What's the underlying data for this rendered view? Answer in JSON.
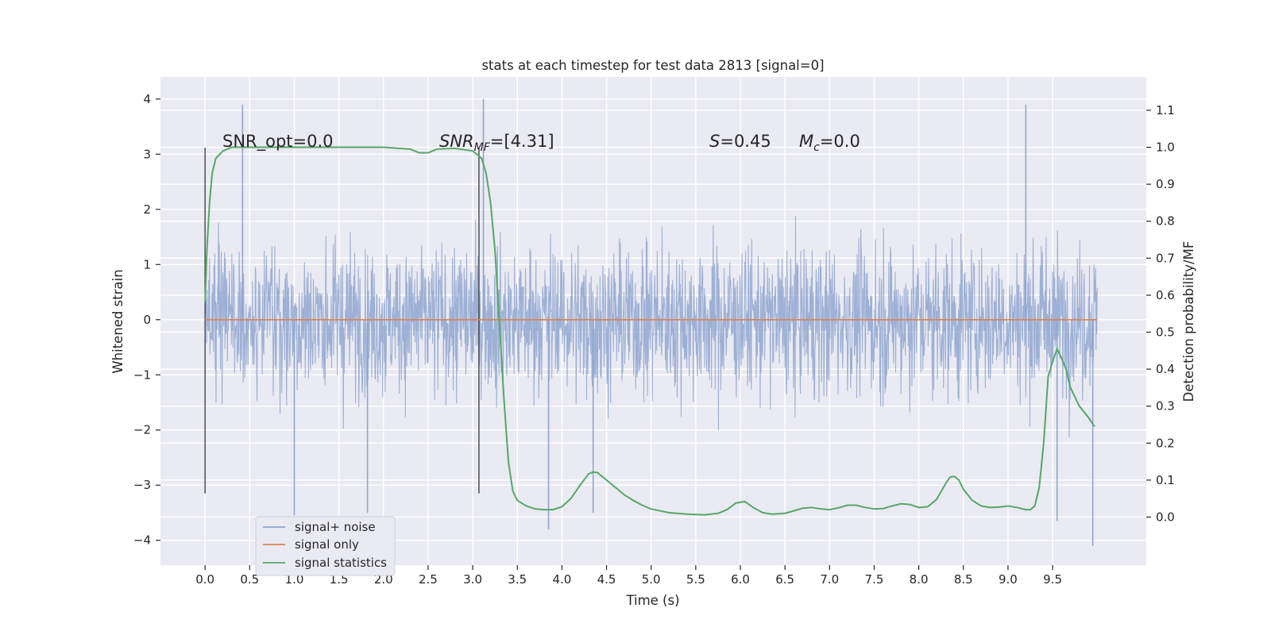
{
  "chart_data": {
    "type": "line",
    "title": "stats at each timestep for test data 2813 [signal=0]",
    "xlabel": "Time (s)",
    "ylabel_left": "Whitened strain",
    "ylabel_right": "Detection probability/MF",
    "xlim": [
      -0.5,
      10.55
    ],
    "ylim_left": [
      -4.45,
      4.4
    ],
    "ylim_right": [
      -0.13,
      1.19
    ],
    "x_ticks": [
      0.0,
      0.5,
      1.0,
      1.5,
      2.0,
      2.5,
      3.0,
      3.5,
      4.0,
      4.5,
      5.0,
      5.5,
      6.0,
      6.5,
      7.0,
      7.5,
      8.0,
      8.5,
      9.0,
      9.5
    ],
    "x_tick_labels": [
      "0.0",
      "0.5",
      "1.0",
      "1.5",
      "2.0",
      "2.5",
      "3.0",
      "3.5",
      "4.0",
      "4.5",
      "5.0",
      "5.5",
      "6.0",
      "6.5",
      "7.0",
      "7.5",
      "8.0",
      "8.5",
      "9.0",
      "9.5"
    ],
    "y_left_ticks": [
      4,
      3,
      2,
      1,
      0,
      -1,
      -2,
      -3,
      -4
    ],
    "y_left_tick_labels": [
      "4",
      "3",
      "2",
      "1",
      "0",
      "−1",
      "−2",
      "−3",
      "−4"
    ],
    "y_right_ticks": [
      1.1,
      1.0,
      0.9,
      0.8,
      0.7,
      0.6,
      0.5,
      0.4,
      0.3,
      0.2,
      0.1,
      0.0
    ],
    "y_right_tick_labels": [
      "1.1",
      "1.0",
      "0.9",
      "0.8",
      "0.7",
      "0.6",
      "0.5",
      "0.4",
      "0.3",
      "0.2",
      "0.1",
      "0.0"
    ],
    "grid": true,
    "legend_position": "lower-left",
    "series": [
      {
        "name": "signal+ noise",
        "axis": "left",
        "color": "#8fa6d0",
        "x_range": [
          0.0,
          10.0
        ],
        "typical_amplitude": 2.0,
        "peak_values": [
          [
            0.42,
            3.9
          ],
          [
            1.0,
            -3.55
          ],
          [
            1.82,
            -3.5
          ],
          [
            3.12,
            4.0
          ],
          [
            3.85,
            -3.8
          ],
          [
            4.35,
            -3.5
          ],
          [
            9.2,
            3.9
          ],
          [
            9.55,
            -3.65
          ],
          [
            9.95,
            -4.1
          ]
        ]
      },
      {
        "name": "signal only",
        "axis": "left",
        "color": "#dd8452",
        "x": [
          0.0,
          10.0
        ],
        "y": [
          0.0,
          0.0
        ]
      },
      {
        "name": "signal statistics",
        "axis": "right",
        "color": "#55a868",
        "x": [
          0.0,
          0.02,
          0.05,
          0.08,
          0.12,
          0.2,
          0.3,
          0.5,
          1.0,
          1.5,
          2.0,
          2.3,
          2.4,
          2.5,
          2.6,
          2.8,
          3.0,
          3.1,
          3.15,
          3.2,
          3.25,
          3.3,
          3.35,
          3.4,
          3.45,
          3.5,
          3.6,
          3.7,
          3.8,
          3.9,
          4.0,
          4.1,
          4.2,
          4.3,
          4.35,
          4.4,
          4.5,
          4.6,
          4.7,
          4.8,
          4.9,
          5.0,
          5.2,
          5.4,
          5.6,
          5.75,
          5.85,
          5.95,
          6.05,
          6.15,
          6.25,
          6.35,
          6.5,
          6.6,
          6.7,
          6.8,
          6.9,
          7.0,
          7.1,
          7.2,
          7.3,
          7.4,
          7.5,
          7.6,
          7.7,
          7.8,
          7.9,
          8.0,
          8.1,
          8.2,
          8.3,
          8.35,
          8.4,
          8.45,
          8.5,
          8.6,
          8.7,
          8.8,
          8.9,
          9.0,
          9.1,
          9.2,
          9.25,
          9.3,
          9.35,
          9.4,
          9.45,
          9.5,
          9.55,
          9.6,
          9.65,
          9.7,
          9.8,
          9.9,
          9.97
        ],
        "y": [
          0.58,
          0.72,
          0.85,
          0.93,
          0.97,
          0.99,
          1.0,
          1.0,
          1.0,
          1.0,
          1.0,
          0.995,
          0.985,
          0.985,
          0.995,
          0.997,
          0.99,
          0.97,
          0.93,
          0.85,
          0.72,
          0.52,
          0.32,
          0.15,
          0.07,
          0.045,
          0.03,
          0.022,
          0.02,
          0.02,
          0.028,
          0.05,
          0.085,
          0.117,
          0.122,
          0.12,
          0.1,
          0.08,
          0.06,
          0.045,
          0.032,
          0.022,
          0.012,
          0.008,
          0.006,
          0.01,
          0.02,
          0.038,
          0.042,
          0.025,
          0.012,
          0.008,
          0.01,
          0.017,
          0.024,
          0.026,
          0.022,
          0.02,
          0.025,
          0.032,
          0.032,
          0.026,
          0.022,
          0.023,
          0.03,
          0.036,
          0.034,
          0.026,
          0.028,
          0.048,
          0.09,
          0.108,
          0.11,
          0.1,
          0.075,
          0.045,
          0.03,
          0.026,
          0.027,
          0.03,
          0.026,
          0.02,
          0.02,
          0.03,
          0.08,
          0.2,
          0.38,
          0.42,
          0.455,
          0.43,
          0.4,
          0.35,
          0.3,
          0.27,
          0.245
        ]
      }
    ],
    "vertical_lines": [
      0.0,
      3.07
    ],
    "annotations": [
      {
        "text": "SNR_opt=0.0",
        "x": 0.2,
        "y": 3.1
      },
      {
        "text": "=[4.31]",
        "prefix_math": "SNR",
        "prefix_sub": "MF",
        "x": 2.6,
        "y": 3.1
      },
      {
        "text": "=0.45",
        "prefix_math": "S",
        "x": 5.6,
        "y": 3.1
      },
      {
        "text": "=0.0",
        "prefix_math": "M",
        "prefix_sub": "c",
        "x": 6.6,
        "y": 3.1
      }
    ]
  }
}
